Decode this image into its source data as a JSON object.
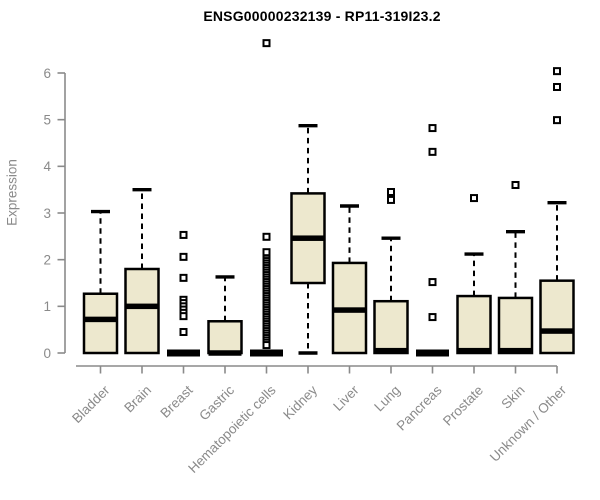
{
  "title": "ENSG00000232139 - RP11-319I23.2",
  "chart_data": {
    "type": "boxplot",
    "title": "ENSG00000232139 - RP11-319I23.2",
    "xlabel": "",
    "ylabel": "Expression",
    "ylim": [
      0,
      6.7
    ],
    "yticks": [
      "0",
      "1",
      "2",
      "3",
      "4",
      "5",
      "6"
    ],
    "grid": "off",
    "legend": "none",
    "categories": [
      "Bladder",
      "Brain",
      "Breast",
      "Gastric",
      "Hematopoietic cells",
      "Kidney",
      "Liver",
      "Lung",
      "Pancreas",
      "Prostate",
      "Skin",
      "Unknown / Other"
    ],
    "series": [
      {
        "name": "Bladder",
        "low": 0,
        "q1": 0,
        "median": 0.72,
        "q3": 1.27,
        "high": 3.03,
        "outliers": []
      },
      {
        "name": "Brain",
        "low": 0,
        "q1": 0,
        "median": 1.0,
        "q3": 1.8,
        "high": 3.5,
        "outliers": []
      },
      {
        "name": "Breast",
        "low": 0,
        "q1": 0,
        "median": 0,
        "q3": 0.02,
        "high": 0.02,
        "outliers": [
          2.53,
          2.06,
          1.61,
          1.14,
          1.07,
          1.0,
          0.93,
          0.86,
          0.79,
          0.45
        ]
      },
      {
        "name": "Gastric",
        "low": 0,
        "q1": 0,
        "median": 0,
        "q3": 0.68,
        "high": 1.63,
        "outliers": []
      },
      {
        "name": "Hematopoietic cells",
        "low": 0,
        "q1": 0,
        "median": 0,
        "q3": 0.02,
        "high": 0.02,
        "outliers": [
          6.64,
          2.49,
          2.16,
          2.02,
          1.97,
          1.92,
          1.87,
          1.82,
          1.77,
          1.72,
          1.67,
          1.62,
          1.57,
          1.52,
          1.47,
          1.42,
          1.37,
          1.32,
          1.27,
          1.22,
          1.17,
          1.12,
          1.07,
          1.02,
          0.97,
          0.92,
          0.87,
          0.82,
          0.77,
          0.72,
          0.67,
          0.62,
          0.57,
          0.52,
          0.47,
          0.42,
          0.37,
          0.32,
          0.27,
          0.22,
          0.17
        ]
      },
      {
        "name": "Kidney",
        "low": 0,
        "q1": 1.5,
        "median": 2.46,
        "q3": 3.42,
        "high": 4.87,
        "outliers": []
      },
      {
        "name": "Liver",
        "low": 0,
        "q1": 0,
        "median": 0.92,
        "q3": 1.93,
        "high": 3.15,
        "outliers": []
      },
      {
        "name": "Lung",
        "low": 0,
        "q1": 0,
        "median": 0.05,
        "q3": 1.11,
        "high": 2.46,
        "outliers": [
          3.45,
          3.28
        ]
      },
      {
        "name": "Pancreas",
        "low": 0,
        "q1": 0,
        "median": 0,
        "q3": 0.02,
        "high": 0.02,
        "outliers": [
          4.82,
          4.31,
          1.52,
          0.77
        ]
      },
      {
        "name": "Prostate",
        "low": 0,
        "q1": 0,
        "median": 0.05,
        "q3": 1.22,
        "high": 2.12,
        "outliers": [
          3.32
        ]
      },
      {
        "name": "Skin",
        "low": 0,
        "q1": 0,
        "median": 0.05,
        "q3": 1.18,
        "high": 2.6,
        "outliers": [
          3.6
        ]
      },
      {
        "name": "Unknown / Other",
        "low": 0,
        "q1": 0,
        "median": 0.47,
        "q3": 1.55,
        "high": 3.22,
        "outliers": [
          6.04,
          5.7,
          4.99
        ]
      }
    ],
    "colors": {
      "box_fill": "#EDE8CE",
      "box_border": "#000000",
      "median": "#000000",
      "whisker": "#000000",
      "outlier_stroke": "#000000",
      "axis": "#8a8a8a",
      "title_color": "#000000",
      "background": "#ffffff"
    }
  }
}
